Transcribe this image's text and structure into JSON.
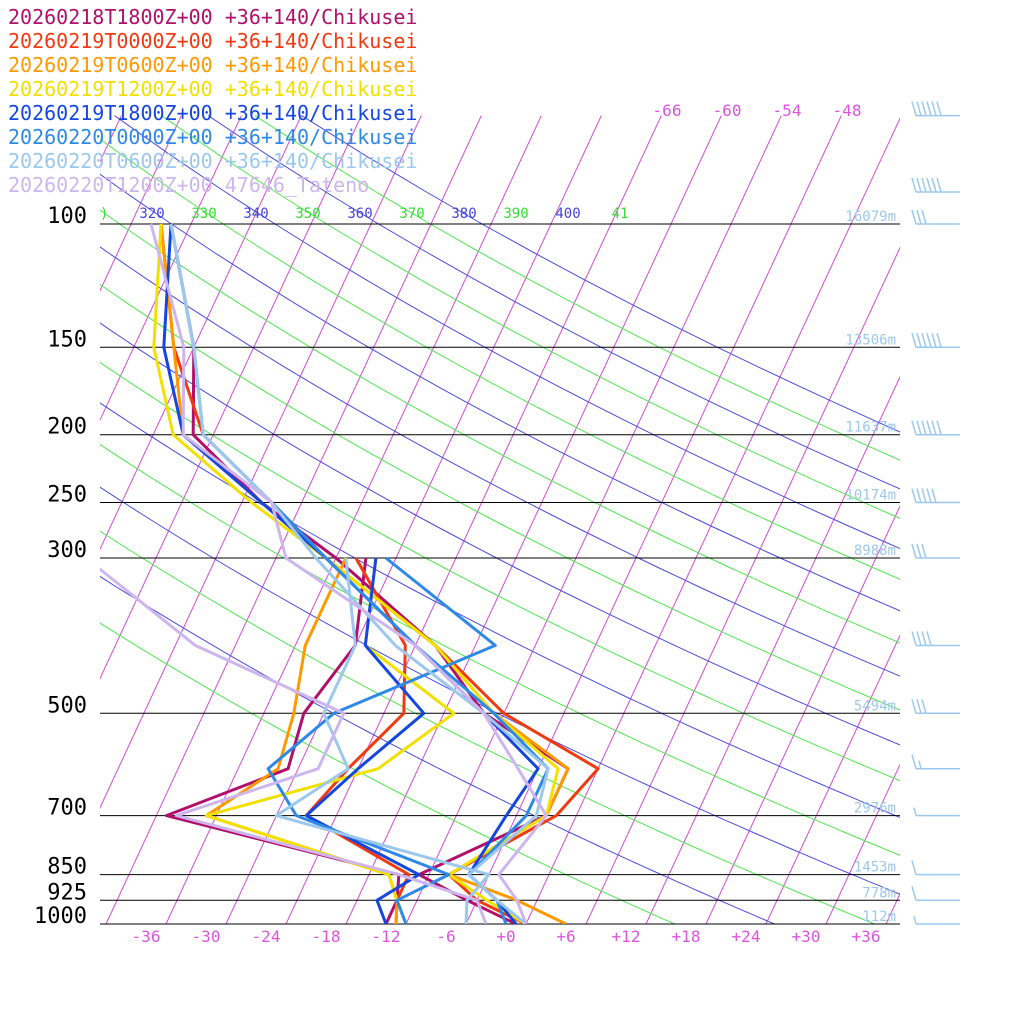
{
  "chart_data": {
    "type": "line",
    "subtype": "skew-T log-p sounding",
    "title": "",
    "xlabel": "",
    "ylabel": "",
    "legend_placement": "top-left",
    "pressure_levels": [
      100,
      150,
      200,
      250,
      300,
      500,
      700,
      850,
      925,
      1000
    ],
    "pressure_tick_labels": [
      "100",
      "150",
      "200",
      "250",
      "300",
      "500",
      "700",
      "850",
      "925",
      "1000"
    ],
    "temperature_ticks": [
      -36,
      -30,
      -24,
      -18,
      -12,
      -6,
      0,
      6,
      12,
      18,
      24,
      30,
      36
    ],
    "temperature_tick_labels": [
      "-36",
      "-30",
      "-24",
      "-18",
      "-12",
      "-6",
      "+0",
      "+6",
      "+12",
      "+18",
      "+24",
      "+30",
      "+36"
    ],
    "upper_temperature_labels": [
      "-66",
      "-60",
      "-54",
      "-48"
    ],
    "theta_labels": [
      {
        "text": ")",
        "color": "#33dd33"
      },
      {
        "text": "320",
        "color": "#4444dd"
      },
      {
        "text": "330",
        "color": "#33dd33"
      },
      {
        "text": "340",
        "color": "#4444dd"
      },
      {
        "text": "350",
        "color": "#33dd33"
      },
      {
        "text": "360",
        "color": "#4444dd"
      },
      {
        "text": "370",
        "color": "#33dd33"
      },
      {
        "text": "380",
        "color": "#4444dd"
      },
      {
        "text": "390",
        "color": "#33dd33"
      },
      {
        "text": "400",
        "color": "#4444dd"
      },
      {
        "text": "41",
        "color": "#33dd33"
      }
    ],
    "heights": [
      {
        "p": 100,
        "label": "16079m"
      },
      {
        "p": 150,
        "label": "13506m"
      },
      {
        "p": 200,
        "label": "11637m"
      },
      {
        "p": 250,
        "label": "10174m"
      },
      {
        "p": 300,
        "label": "8988m"
      },
      {
        "p": 500,
        "label": "5494m"
      },
      {
        "p": 700,
        "label": "2976m"
      },
      {
        "p": 850,
        "label": "1453m"
      },
      {
        "p": 925,
        "label": "778m"
      },
      {
        "p": 1000,
        "label": "112m"
      }
    ],
    "grid": true,
    "series": [
      {
        "name": "20260218T1800Z+00 +36+140/Chikusei",
        "color": "#b0106a",
        "temperature": [
          [
            1000,
            1
          ],
          [
            925,
            -5
          ],
          [
            850,
            -11
          ],
          [
            700,
            -1
          ],
          [
            600,
            -1
          ],
          [
            500,
            -12
          ],
          [
            400,
            -20
          ],
          [
            300,
            -34
          ],
          [
            250,
            -44
          ],
          [
            200,
            -54
          ],
          [
            150,
            -58
          ],
          [
            100,
            -66
          ]
        ],
        "dewpoint": [
          [
            1000,
            -12
          ],
          [
            925,
            -12
          ],
          [
            850,
            -13
          ],
          [
            700,
            -39
          ],
          [
            600,
            -29
          ],
          [
            500,
            -30
          ],
          [
            400,
            -28
          ],
          [
            300,
            -31
          ]
        ]
      },
      {
        "name": "20260219T0000Z+00 +36+140/Chikusei",
        "color": "#f03a10",
        "temperature": [
          [
            1000,
            2
          ],
          [
            925,
            -4
          ],
          [
            850,
            -8
          ],
          [
            700,
            0
          ],
          [
            600,
            2
          ],
          [
            500,
            -10
          ],
          [
            400,
            -20
          ],
          [
            300,
            -35
          ],
          [
            250,
            -43
          ],
          [
            200,
            -53
          ],
          [
            150,
            -60
          ],
          [
            100,
            -67
          ]
        ],
        "dewpoint": [
          [
            1000,
            -11
          ],
          [
            925,
            -12
          ],
          [
            850,
            -12
          ],
          [
            700,
            -25
          ],
          [
            600,
            -23
          ],
          [
            500,
            -20
          ],
          [
            400,
            -23
          ],
          [
            300,
            -32
          ]
        ]
      },
      {
        "name": "20260219T0600Z+00 +36+140/Chikusei",
        "color": "#ff9900",
        "temperature": [
          [
            1000,
            6
          ],
          [
            925,
            0
          ],
          [
            850,
            -8
          ],
          [
            700,
            -1
          ],
          [
            600,
            -1
          ],
          [
            500,
            -11
          ],
          [
            400,
            -20
          ],
          [
            300,
            -35
          ],
          [
            250,
            -44
          ],
          [
            200,
            -55
          ],
          [
            150,
            -60
          ],
          [
            100,
            -67
          ]
        ],
        "dewpoint": [
          [
            1000,
            -11
          ],
          [
            925,
            -12
          ],
          [
            850,
            -14
          ],
          [
            700,
            -35
          ],
          [
            600,
            -30
          ],
          [
            500,
            -31
          ],
          [
            400,
            -33
          ],
          [
            300,
            -33
          ]
        ]
      },
      {
        "name": "20260219T1200Z+00 +36+140/Chikusei",
        "color": "#f2e000",
        "temperature": [
          [
            1000,
            2
          ],
          [
            925,
            -3
          ],
          [
            850,
            -8
          ],
          [
            700,
            -1
          ],
          [
            600,
            -2
          ],
          [
            500,
            -11
          ],
          [
            400,
            -20
          ],
          [
            300,
            -35
          ],
          [
            250,
            -45
          ],
          [
            200,
            -56
          ],
          [
            150,
            -62
          ],
          [
            100,
            -67
          ]
        ],
        "dewpoint": [
          [
            1000,
            -10
          ],
          [
            925,
            -12
          ],
          [
            850,
            -14
          ],
          [
            700,
            -35
          ],
          [
            600,
            -20
          ],
          [
            500,
            -15
          ],
          [
            400,
            -27
          ],
          [
            300,
            -30
          ]
        ]
      },
      {
        "name": "20260219T1800Z+00 +36+140/Chikusei",
        "color": "#1446e0",
        "temperature": [
          [
            1000,
            1
          ],
          [
            925,
            -2
          ],
          [
            850,
            -6
          ],
          [
            700,
            -5
          ],
          [
            600,
            -4
          ],
          [
            500,
            -12
          ],
          [
            400,
            -22
          ],
          [
            300,
            -35
          ],
          [
            250,
            -44
          ],
          [
            200,
            -55
          ],
          [
            150,
            -61
          ],
          [
            100,
            -66
          ]
        ],
        "dewpoint": [
          [
            1000,
            -12
          ],
          [
            925,
            -14
          ],
          [
            850,
            -11
          ],
          [
            700,
            -25
          ],
          [
            600,
            -22
          ],
          [
            500,
            -18
          ],
          [
            400,
            -27
          ],
          [
            300,
            -30
          ]
        ]
      },
      {
        "name": "20260220T0000Z+00 +36+140/Chikusei",
        "color": "#2e8ae6",
        "temperature": [
          [
            1000,
            0
          ],
          [
            925,
            -2
          ],
          [
            850,
            -6
          ],
          [
            700,
            -3
          ],
          [
            600,
            -3
          ],
          [
            500,
            -11
          ],
          [
            400,
            -22
          ],
          [
            300,
            -35
          ],
          [
            250,
            -43
          ],
          [
            200,
            -53
          ],
          [
            150,
            -58
          ],
          [
            100,
            -66
          ]
        ],
        "dewpoint": [
          [
            1000,
            -10
          ],
          [
            925,
            -12
          ],
          [
            850,
            -8
          ],
          [
            700,
            -26
          ],
          [
            600,
            -31
          ],
          [
            500,
            -27
          ],
          [
            400,
            -14
          ],
          [
            300,
            -29
          ]
        ]
      },
      {
        "name": "20260220T0600Z+00 +36+140/Chikusei",
        "color": "#9cc8ee",
        "temperature": [
          [
            1000,
            2
          ],
          [
            925,
            -2
          ],
          [
            850,
            -6
          ],
          [
            700,
            -2
          ],
          [
            600,
            -3
          ],
          [
            500,
            -12
          ],
          [
            400,
            -24
          ],
          [
            300,
            -36
          ],
          [
            250,
            -43
          ],
          [
            200,
            -53
          ],
          [
            150,
            -58
          ],
          [
            100,
            -66
          ]
        ],
        "dewpoint": [
          [
            1000,
            -4
          ],
          [
            925,
            -5
          ],
          [
            850,
            -4
          ],
          [
            700,
            -28
          ],
          [
            600,
            -23
          ],
          [
            500,
            -28
          ],
          [
            400,
            -28
          ],
          [
            300,
            -33
          ]
        ]
      },
      {
        "name": "20260220T1200Z+00 47646_Tateno",
        "color": "#cdb6ee",
        "temperature": [
          [
            1000,
            2
          ],
          [
            925,
            0
          ],
          [
            850,
            -3
          ],
          [
            700,
            -1
          ],
          [
            600,
            -6
          ],
          [
            500,
            -12
          ],
          [
            400,
            -22
          ],
          [
            300,
            -39
          ],
          [
            250,
            -43
          ],
          [
            200,
            -55
          ],
          [
            150,
            -59
          ],
          [
            100,
            -68
          ]
        ],
        "dewpoint": [
          [
            1000,
            -2
          ],
          [
            925,
            -4
          ],
          [
            850,
            -13
          ],
          [
            700,
            -38
          ],
          [
            600,
            -26
          ],
          [
            500,
            -26
          ],
          [
            400,
            -44
          ],
          [
            300,
            -59
          ],
          [
            250,
            -66
          ],
          [
            200,
            -76
          ],
          [
            150,
            -79
          ],
          [
            100,
            -84
          ]
        ]
      }
    ],
    "wind_barbs": [
      {
        "p": 70,
        "speed_kt": 60,
        "direction_deg": 275
      },
      {
        "p": 90,
        "speed_kt": 60,
        "direction_deg": 275
      },
      {
        "p": 100,
        "speed_kt": 30,
        "direction_deg": 275
      },
      {
        "p": 150,
        "speed_kt": 60,
        "direction_deg": 275
      },
      {
        "p": 200,
        "speed_kt": 60,
        "direction_deg": 275
      },
      {
        "p": 250,
        "speed_kt": 50,
        "direction_deg": 280
      },
      {
        "p": 300,
        "speed_kt": 30,
        "direction_deg": 290
      },
      {
        "p": 400,
        "speed_kt": 40,
        "direction_deg": 275
      },
      {
        "p": 500,
        "speed_kt": 30,
        "direction_deg": 270
      },
      {
        "p": 600,
        "speed_kt": 15,
        "direction_deg": 270
      },
      {
        "p": 700,
        "speed_kt": 5,
        "direction_deg": 270
      },
      {
        "p": 850,
        "speed_kt": 10,
        "direction_deg": 220
      },
      {
        "p": 925,
        "speed_kt": 10,
        "direction_deg": 200
      },
      {
        "p": 1000,
        "speed_kt": 5,
        "direction_deg": 330
      }
    ]
  }
}
